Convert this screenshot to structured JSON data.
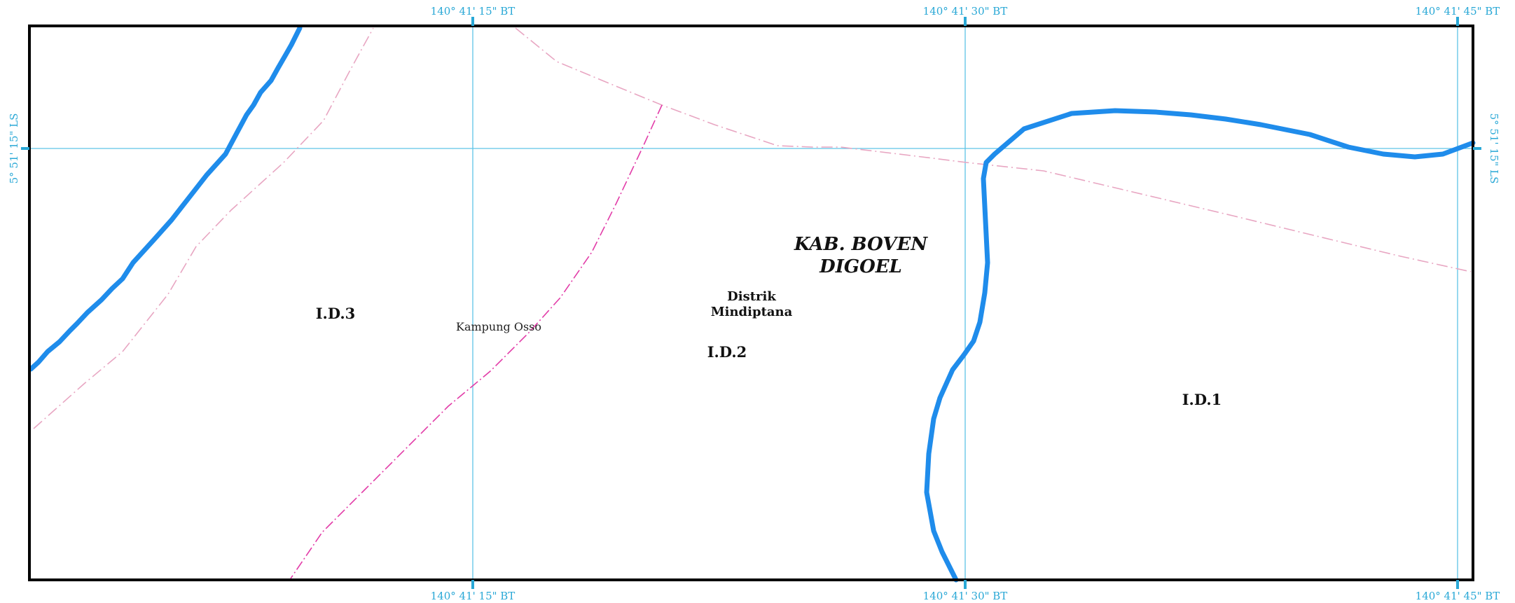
{
  "grid": {
    "top_labels": [
      "140° 41' 15\" BT",
      "140° 41' 30\" BT",
      "140° 41' 45\" BT"
    ],
    "bottom_labels": [
      "140° 41' 15\" BT",
      "140° 41' 30\" BT",
      "140° 41' 45\" BT"
    ],
    "left_label": "5° 51' 15\" LS",
    "right_label": "5° 51' 15\" LS",
    "line_color": "#5ec4e6",
    "label_color": "#29a8d6"
  },
  "regency": {
    "line1": "KAB. BOVEN",
    "line2": "DIGOEL"
  },
  "district": {
    "line1": "Distrik",
    "line2": "Mindiptana"
  },
  "village": {
    "name": "Kampung Osso"
  },
  "zones": {
    "zone_1": "I.D.1",
    "zone_2": "I.D.2",
    "zone_3": "I.D.3"
  },
  "colors": {
    "river": "#1f8ceb",
    "district_boundary": "#e23ca8",
    "minor_boundary": "#e8a6c2",
    "frame": "#000000"
  }
}
